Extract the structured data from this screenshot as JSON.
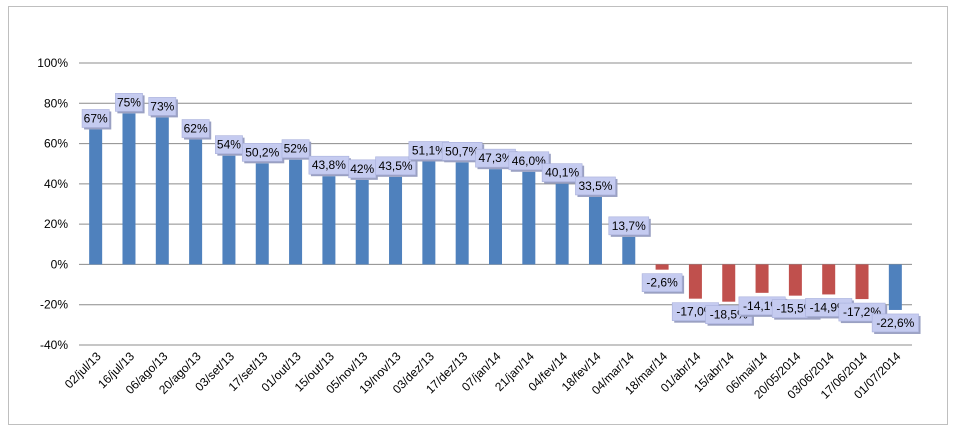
{
  "chart_data": {
    "type": "bar",
    "title": "",
    "xlabel": "",
    "ylabel": "",
    "ylim": [
      -40,
      100
    ],
    "yticks": [
      -40,
      -20,
      0,
      20,
      40,
      60,
      80,
      100
    ],
    "ytick_labels": [
      "-40%",
      "-20%",
      "0%",
      "20%",
      "40%",
      "60%",
      "80%",
      "100%"
    ],
    "grid": true,
    "legend": "none",
    "colors": {
      "positive": "#4f81bd",
      "negative": "#c0504d",
      "label_bg": "#c5cbf0"
    },
    "categories": [
      "02/jul/13",
      "16/jul/13",
      "06/ago/13",
      "20/ago/13",
      "03/set/13",
      "17/set/13",
      "01/out/13",
      "15/out/13",
      "05/nov/13",
      "19/nov/13",
      "03/dez/13",
      "17/dez/13",
      "07/jan/14",
      "21/jan/14",
      "04/fev/14",
      "18/fev/14",
      "04/mar/14",
      "18/mar/14",
      "01/abr/14",
      "15/abr/14",
      "06/mai/14",
      "20/05/2014",
      "03/06/2014",
      "17/06/2014",
      "01/07/2014"
    ],
    "values": [
      67,
      75,
      73,
      62,
      54,
      50.2,
      52,
      43.8,
      42,
      43.5,
      51.1,
      50.7,
      47.3,
      46.0,
      40.1,
      33.5,
      13.7,
      -2.6,
      -17.0,
      -18.5,
      -14.1,
      -15.5,
      -14.9,
      -17.2,
      -22.6
    ],
    "data_labels": [
      "67%",
      "75%",
      "73%",
      "62%",
      "54%",
      "50,2%",
      "52%",
      "43,8%",
      "42%",
      "43,5%",
      "51,1%",
      "50,7%",
      "47,3%",
      "46,0%",
      "40,1%",
      "33,5%",
      "13,7%",
      "-2,6%",
      "-17,0%",
      "-18,5%",
      "-14,1%",
      "-15,5%",
      "-14,9%",
      "-17,2%",
      "-22,6%"
    ],
    "bar_colors": [
      "#4f81bd",
      "#4f81bd",
      "#4f81bd",
      "#4f81bd",
      "#4f81bd",
      "#4f81bd",
      "#4f81bd",
      "#4f81bd",
      "#4f81bd",
      "#4f81bd",
      "#4f81bd",
      "#4f81bd",
      "#4f81bd",
      "#4f81bd",
      "#4f81bd",
      "#4f81bd",
      "#4f81bd",
      "#c0504d",
      "#c0504d",
      "#c0504d",
      "#c0504d",
      "#c0504d",
      "#c0504d",
      "#c0504d",
      "#4f81bd"
    ]
  }
}
